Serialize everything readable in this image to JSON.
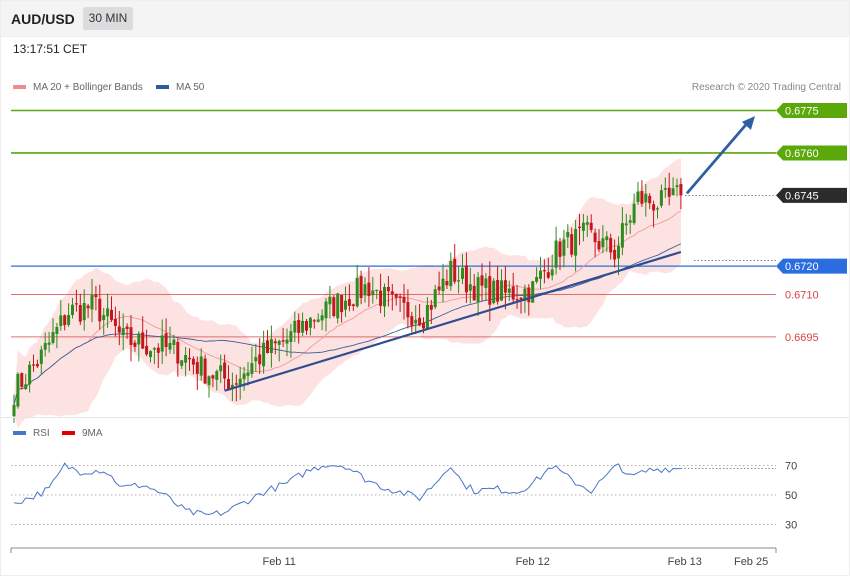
{
  "header": {
    "symbol": "AUD/USD",
    "timeframe": "30 MIN",
    "timestamp": "13:17:51 CET"
  },
  "legend": {
    "items": [
      {
        "label": "MA 20 + Bollinger Bands",
        "color": "#f28b8b"
      },
      {
        "label": "MA 50",
        "color": "#2e5c9a"
      }
    ],
    "credit": "Research © 2020 Trading Central"
  },
  "rsi_legend": {
    "items": [
      {
        "label": "RSI",
        "color": "#4a74c9"
      },
      {
        "label": "9MA",
        "color": "#e00000"
      }
    ]
  },
  "colors": {
    "up_candle": "#2e8b1e",
    "down_candle": "#c4161c",
    "target": "#5aa80a",
    "pivot": "#2a6dde",
    "support": "#d94444",
    "last": "#2b2b2b",
    "band_fill": "#fde2e2",
    "ma50": "#3d5f9a",
    "trendline": "#2f4d8f",
    "arrow": "#2f5fa0"
  },
  "chart_data": [
    {
      "type": "candlestick",
      "title": "AUD/USD",
      "timeframe": "30 MIN",
      "y_scale": {
        "min": 0.6672,
        "max": 0.6778
      },
      "x_ticks": [
        {
          "label": "Feb 11",
          "index": 68
        },
        {
          "label": "Feb 12",
          "index": 133
        },
        {
          "label": "Feb 13",
          "index": 172
        },
        {
          "label": "Feb 25",
          "index": 189
        }
      ],
      "price_levels": [
        {
          "label": "0.6775",
          "value": 0.6775,
          "role": "target"
        },
        {
          "label": "0.6760",
          "value": 0.676,
          "role": "target"
        },
        {
          "label": "0.6745",
          "value": 0.6745,
          "role": "last"
        },
        {
          "label": "0.6720",
          "value": 0.672,
          "role": "pivot"
        },
        {
          "label": "0.6710",
          "value": 0.671,
          "role": "support"
        },
        {
          "label": "0.6695",
          "value": 0.6695,
          "role": "support"
        }
      ],
      "anchors": [
        [
          0,
          0.6676
        ],
        [
          7,
          0.6688
        ],
        [
          14,
          0.6704
        ],
        [
          21,
          0.6706
        ],
        [
          28,
          0.6694
        ],
        [
          35,
          0.6692
        ],
        [
          42,
          0.669
        ],
        [
          49,
          0.6683
        ],
        [
          56,
          0.6679
        ],
        [
          63,
          0.6688
        ],
        [
          70,
          0.6694
        ],
        [
          77,
          0.6702
        ],
        [
          84,
          0.6708
        ],
        [
          91,
          0.6713
        ],
        [
          98,
          0.6705
        ],
        [
          105,
          0.6703
        ],
        [
          112,
          0.6718
        ],
        [
          119,
          0.6712
        ],
        [
          126,
          0.671
        ],
        [
          133,
          0.6712
        ],
        [
          140,
          0.6727
        ],
        [
          147,
          0.6731
        ],
        [
          154,
          0.6725
        ],
        [
          160,
          0.6744
        ],
        [
          166,
          0.6742
        ],
        [
          171,
          0.6745
        ]
      ],
      "trendline": [
        [
          54,
          0.6676
        ],
        [
          171,
          0.6725
        ]
      ],
      "target_arrow": [
        [
          171,
          0.6745
        ],
        [
          190,
          0.6773
        ]
      ]
    },
    {
      "type": "line",
      "title": "RSI",
      "y_scale": {
        "min": 18,
        "max": 82
      },
      "levels": [
        70,
        50,
        30
      ],
      "series": [
        {
          "name": "RSI",
          "anchors": [
            [
              0,
              45
            ],
            [
              4,
              48
            ],
            [
              9,
              54
            ],
            [
              13,
              70
            ],
            [
              17,
              66
            ],
            [
              23,
              67
            ],
            [
              28,
              55
            ],
            [
              33,
              57
            ],
            [
              38,
              51
            ],
            [
              44,
              39
            ],
            [
              49,
              36
            ],
            [
              54,
              38
            ],
            [
              59,
              45
            ],
            [
              64,
              52
            ],
            [
              70,
              58
            ],
            [
              75,
              66
            ],
            [
              80,
              71
            ],
            [
              85,
              70
            ],
            [
              90,
              61
            ],
            [
              94,
              56
            ],
            [
              99,
              52
            ],
            [
              104,
              48
            ],
            [
              108,
              58
            ],
            [
              112,
              71
            ],
            [
              115,
              58
            ],
            [
              118,
              53
            ],
            [
              124,
              54
            ],
            [
              129,
              52
            ],
            [
              134,
              60
            ],
            [
              138,
              70
            ],
            [
              143,
              60
            ],
            [
              148,
              53
            ],
            [
              152,
              63
            ],
            [
              155,
              71
            ],
            [
              158,
              62
            ],
            [
              163,
              67
            ],
            [
              167,
              68
            ],
            [
              171,
              68
            ]
          ]
        }
      ]
    }
  ]
}
